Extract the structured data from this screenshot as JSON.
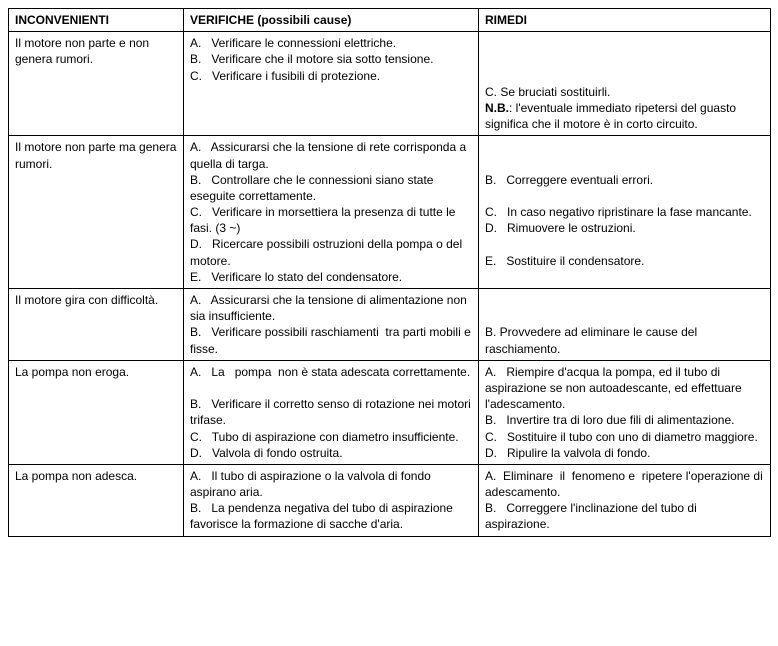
{
  "headers": {
    "col1": "INCONVENIENTI",
    "col2": "VERIFICHE (possibili cause)",
    "col3": "RIMEDI"
  },
  "rows": [
    {
      "inconv": "Il motore non parte e non genera rumori.",
      "verif": "A.   Verificare le connessioni elettriche.\nB.   Verificare che il motore sia sotto tensione.\nC.   Verificare i fusibili di protezione.",
      "rimedi_pre": "\n\n\nC. Se bruciati sostituirli.\n",
      "rimedi_bold": "N.B.",
      "rimedi_post": ": l'eventuale immediato ripetersi del guasto significa che il motore è in corto circuito."
    },
    {
      "inconv": "Il motore non parte ma genera rumori.",
      "verif": "A.   Assicurarsi che la tensione di rete corrisponda a quella di targa.\nB.   Controllare che le connessioni siano state eseguite correttamente.\nC.   Verificare in morsettiera la presenza di tutte le fasi. (3 ~)\nD.   Ricercare possibili ostruzioni della pompa o del motore.\nE.   Verificare lo stato del condensatore.",
      "rimedi": "\n\nB.   Correggere eventuali errori.\n\nC.   In caso negativo ripristinare la fase mancante.\nD.   Rimuovere le ostruzioni.\n\nE.   Sostituire il condensatore."
    },
    {
      "inconv": "Il motore gira con difficoltà.",
      "verif": "A.   Assicurarsi che la tensione di alimentazione non sia insufficiente.\nB.   Verificare possibili raschiamenti  tra parti mobili e fisse.",
      "rimedi": "\n\nB. Provvedere ad eliminare le cause del raschiamento."
    },
    {
      "inconv": "La pompa non eroga.",
      "verif": "A.   La   pompa  non è stata adescata correttamente.\n\nB.   Verificare il corretto senso di rotazione nei motori trifase.\nC.   Tubo di aspirazione con diametro insufficiente.\nD.   Valvola di fondo ostruita.",
      "rimedi": "A.   Riempire d'acqua la pompa, ed il tubo di aspirazione se non autoadescante, ed effettuare l'adescamento.\nB.   Invertire tra di loro due fili di alimentazione.\nC.   Sostituire il tubo con uno di diametro maggiore.\nD.   Ripulire la valvola di fondo."
    },
    {
      "inconv": "La pompa non adesca.",
      "verif": "A.   Il tubo di aspirazione o la valvola di fondo aspirano aria.\nB.   La pendenza negativa del tubo di aspirazione favorisce la formazione di sacche d'aria.",
      "rimedi": "A.  Eliminare  il  fenomeno e  ripetere l'operazione di adescamento.\nB.   Correggere l'inclinazione del tubo di aspirazione."
    }
  ]
}
